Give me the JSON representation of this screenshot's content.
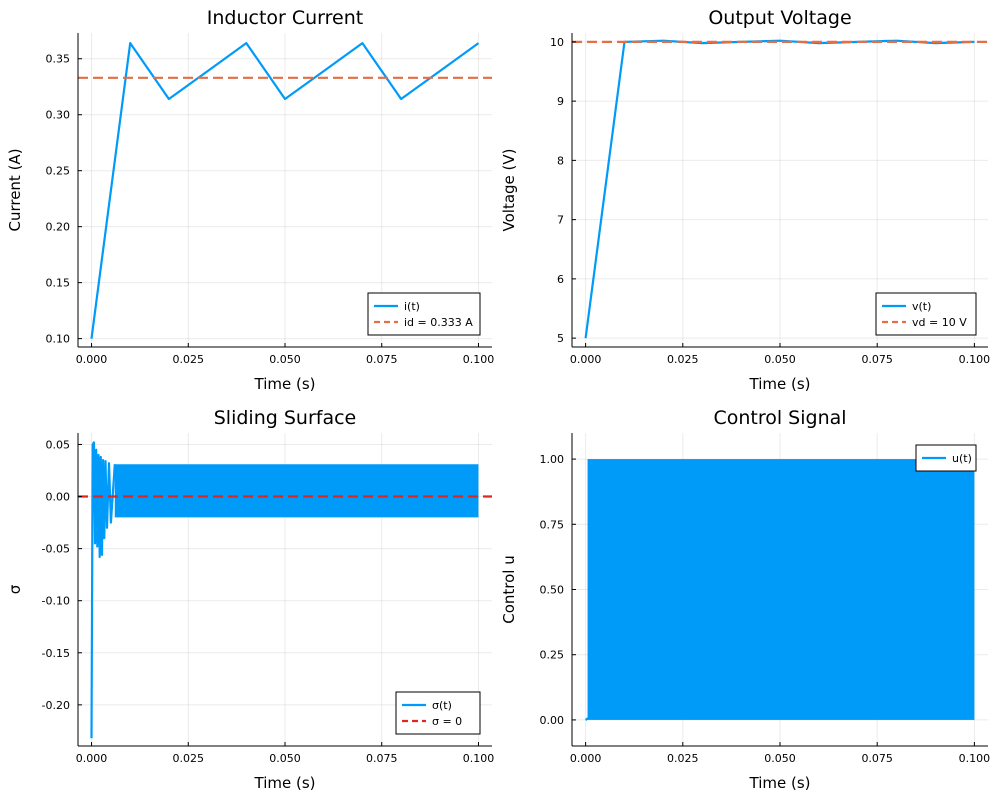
{
  "chart_data": [
    {
      "type": "line",
      "title": "Inductor Current",
      "xlabel": "Time (s)",
      "ylabel": "Current (A)",
      "xlim": [
        -0.0035,
        0.1035
      ],
      "ylim": [
        0.0925,
        0.373
      ],
      "xticks": [
        0.0,
        0.025,
        0.05,
        0.075,
        0.1
      ],
      "xtick_labels": [
        "0.000",
        "0.025",
        "0.050",
        "0.075",
        "0.100"
      ],
      "yticks": [
        0.1,
        0.15,
        0.2,
        0.25,
        0.3,
        0.35
      ],
      "ytick_labels": [
        "0.10",
        "0.15",
        "0.20",
        "0.25",
        "0.30",
        "0.35"
      ],
      "grid": true,
      "legend_position": "bottom-right",
      "series": [
        {
          "name": "i(t)",
          "style": "solid",
          "color": "#009af9",
          "x": [
            0.0,
            0.01,
            0.02,
            0.03,
            0.04,
            0.05,
            0.06,
            0.07,
            0.08,
            0.09,
            0.1
          ],
          "y": [
            0.1,
            0.364,
            0.314,
            0.339,
            0.364,
            0.314,
            0.339,
            0.364,
            0.314,
            0.339,
            0.364
          ]
        },
        {
          "name": "id = 0.333 A",
          "style": "dashed",
          "color": "#e26f46",
          "x": [
            -0.0035,
            0.1035
          ],
          "y": [
            0.333,
            0.333
          ]
        }
      ]
    },
    {
      "type": "line",
      "title": "Output Voltage",
      "xlabel": "Time (s)",
      "ylabel": "Voltage (V)",
      "xlim": [
        -0.0035,
        0.1035
      ],
      "ylim": [
        4.85,
        10.15
      ],
      "xticks": [
        0.0,
        0.025,
        0.05,
        0.075,
        0.1
      ],
      "xtick_labels": [
        "0.000",
        "0.025",
        "0.050",
        "0.075",
        "0.100"
      ],
      "yticks": [
        5,
        6,
        7,
        8,
        9,
        10
      ],
      "ytick_labels": [
        "5",
        "6",
        "7",
        "8",
        "9",
        "10"
      ],
      "grid": true,
      "legend_position": "bottom-right",
      "series": [
        {
          "name": "v(t)",
          "style": "solid",
          "color": "#009af9",
          "x": [
            0.0,
            0.01,
            0.02,
            0.03,
            0.04,
            0.05,
            0.06,
            0.07,
            0.08,
            0.09,
            0.1
          ],
          "y": [
            5.0,
            10.0,
            10.02,
            9.98,
            10.0,
            10.02,
            9.98,
            10.0,
            10.02,
            9.98,
            10.0
          ]
        },
        {
          "name": "vd = 10 V",
          "style": "dashed",
          "color": "#e26f46",
          "x": [
            -0.0035,
            0.1035
          ],
          "y": [
            10.0,
            10.0
          ]
        }
      ]
    },
    {
      "type": "line",
      "title": "Sliding Surface",
      "xlabel": "Time (s)",
      "ylabel": "σ",
      "xlim": [
        -0.0035,
        0.1035
      ],
      "ylim": [
        -0.2395,
        0.061
      ],
      "xticks": [
        0.0,
        0.025,
        0.05,
        0.075,
        0.1
      ],
      "xtick_labels": [
        "0.000",
        "0.025",
        "0.050",
        "0.075",
        "0.100"
      ],
      "yticks": [
        -0.2,
        -0.15,
        -0.1,
        -0.05,
        0.0,
        0.05
      ],
      "ytick_labels": [
        "-0.20",
        "-0.15",
        "-0.10",
        "-0.05",
        "0.00",
        "0.05"
      ],
      "grid": true,
      "legend_position": "bottom-right",
      "series": [
        {
          "name": "σ(t)",
          "style": "solid",
          "color": "#009af9",
          "x": [
            0.0,
            0.0003,
            0.0006,
            0.0009,
            0.0012,
            0.0015,
            0.0018,
            0.0021,
            0.0024,
            0.0027,
            0.003,
            0.0033,
            0.0036,
            0.004,
            0.0045,
            0.005,
            0.006
          ],
          "y": [
            -0.232,
            0.05,
            0.052,
            -0.045,
            0.045,
            -0.048,
            0.04,
            -0.058,
            0.038,
            -0.056,
            0.035,
            -0.04,
            0.034,
            -0.03,
            0.032,
            -0.025,
            0.031
          ],
          "band": {
            "x_start": 0.006,
            "x_end": 0.1,
            "upper": 0.031,
            "lower": -0.02
          }
        },
        {
          "name": "σ = 0",
          "style": "dashed",
          "color": "#e0261f",
          "x": [
            -0.0035,
            0.1035
          ],
          "y": [
            0.0,
            0.0
          ]
        }
      ]
    },
    {
      "type": "line",
      "title": "Control Signal",
      "xlabel": "Time (s)",
      "ylabel": "Control u",
      "xlim": [
        -0.0035,
        0.1035
      ],
      "ylim": [
        -0.1,
        1.1
      ],
      "xticks": [
        0.0,
        0.025,
        0.05,
        0.075,
        0.1
      ],
      "xtick_labels": [
        "0.000",
        "0.025",
        "0.050",
        "0.075",
        "0.100"
      ],
      "yticks": [
        0.0,
        0.25,
        0.5,
        0.75,
        1.0
      ],
      "ytick_labels": [
        "0.00",
        "0.25",
        "0.50",
        "0.75",
        "1.00"
      ],
      "grid": true,
      "legend_position": "top-right",
      "series": [
        {
          "name": "u(t)",
          "style": "solid",
          "color": "#009af9",
          "x": [
            0.0,
            0.1
          ],
          "y": [
            0.0,
            1.0
          ],
          "band": {
            "x_start": 0.0005,
            "x_end": 0.1,
            "upper": 1.0,
            "lower": 0.0
          }
        }
      ]
    }
  ]
}
